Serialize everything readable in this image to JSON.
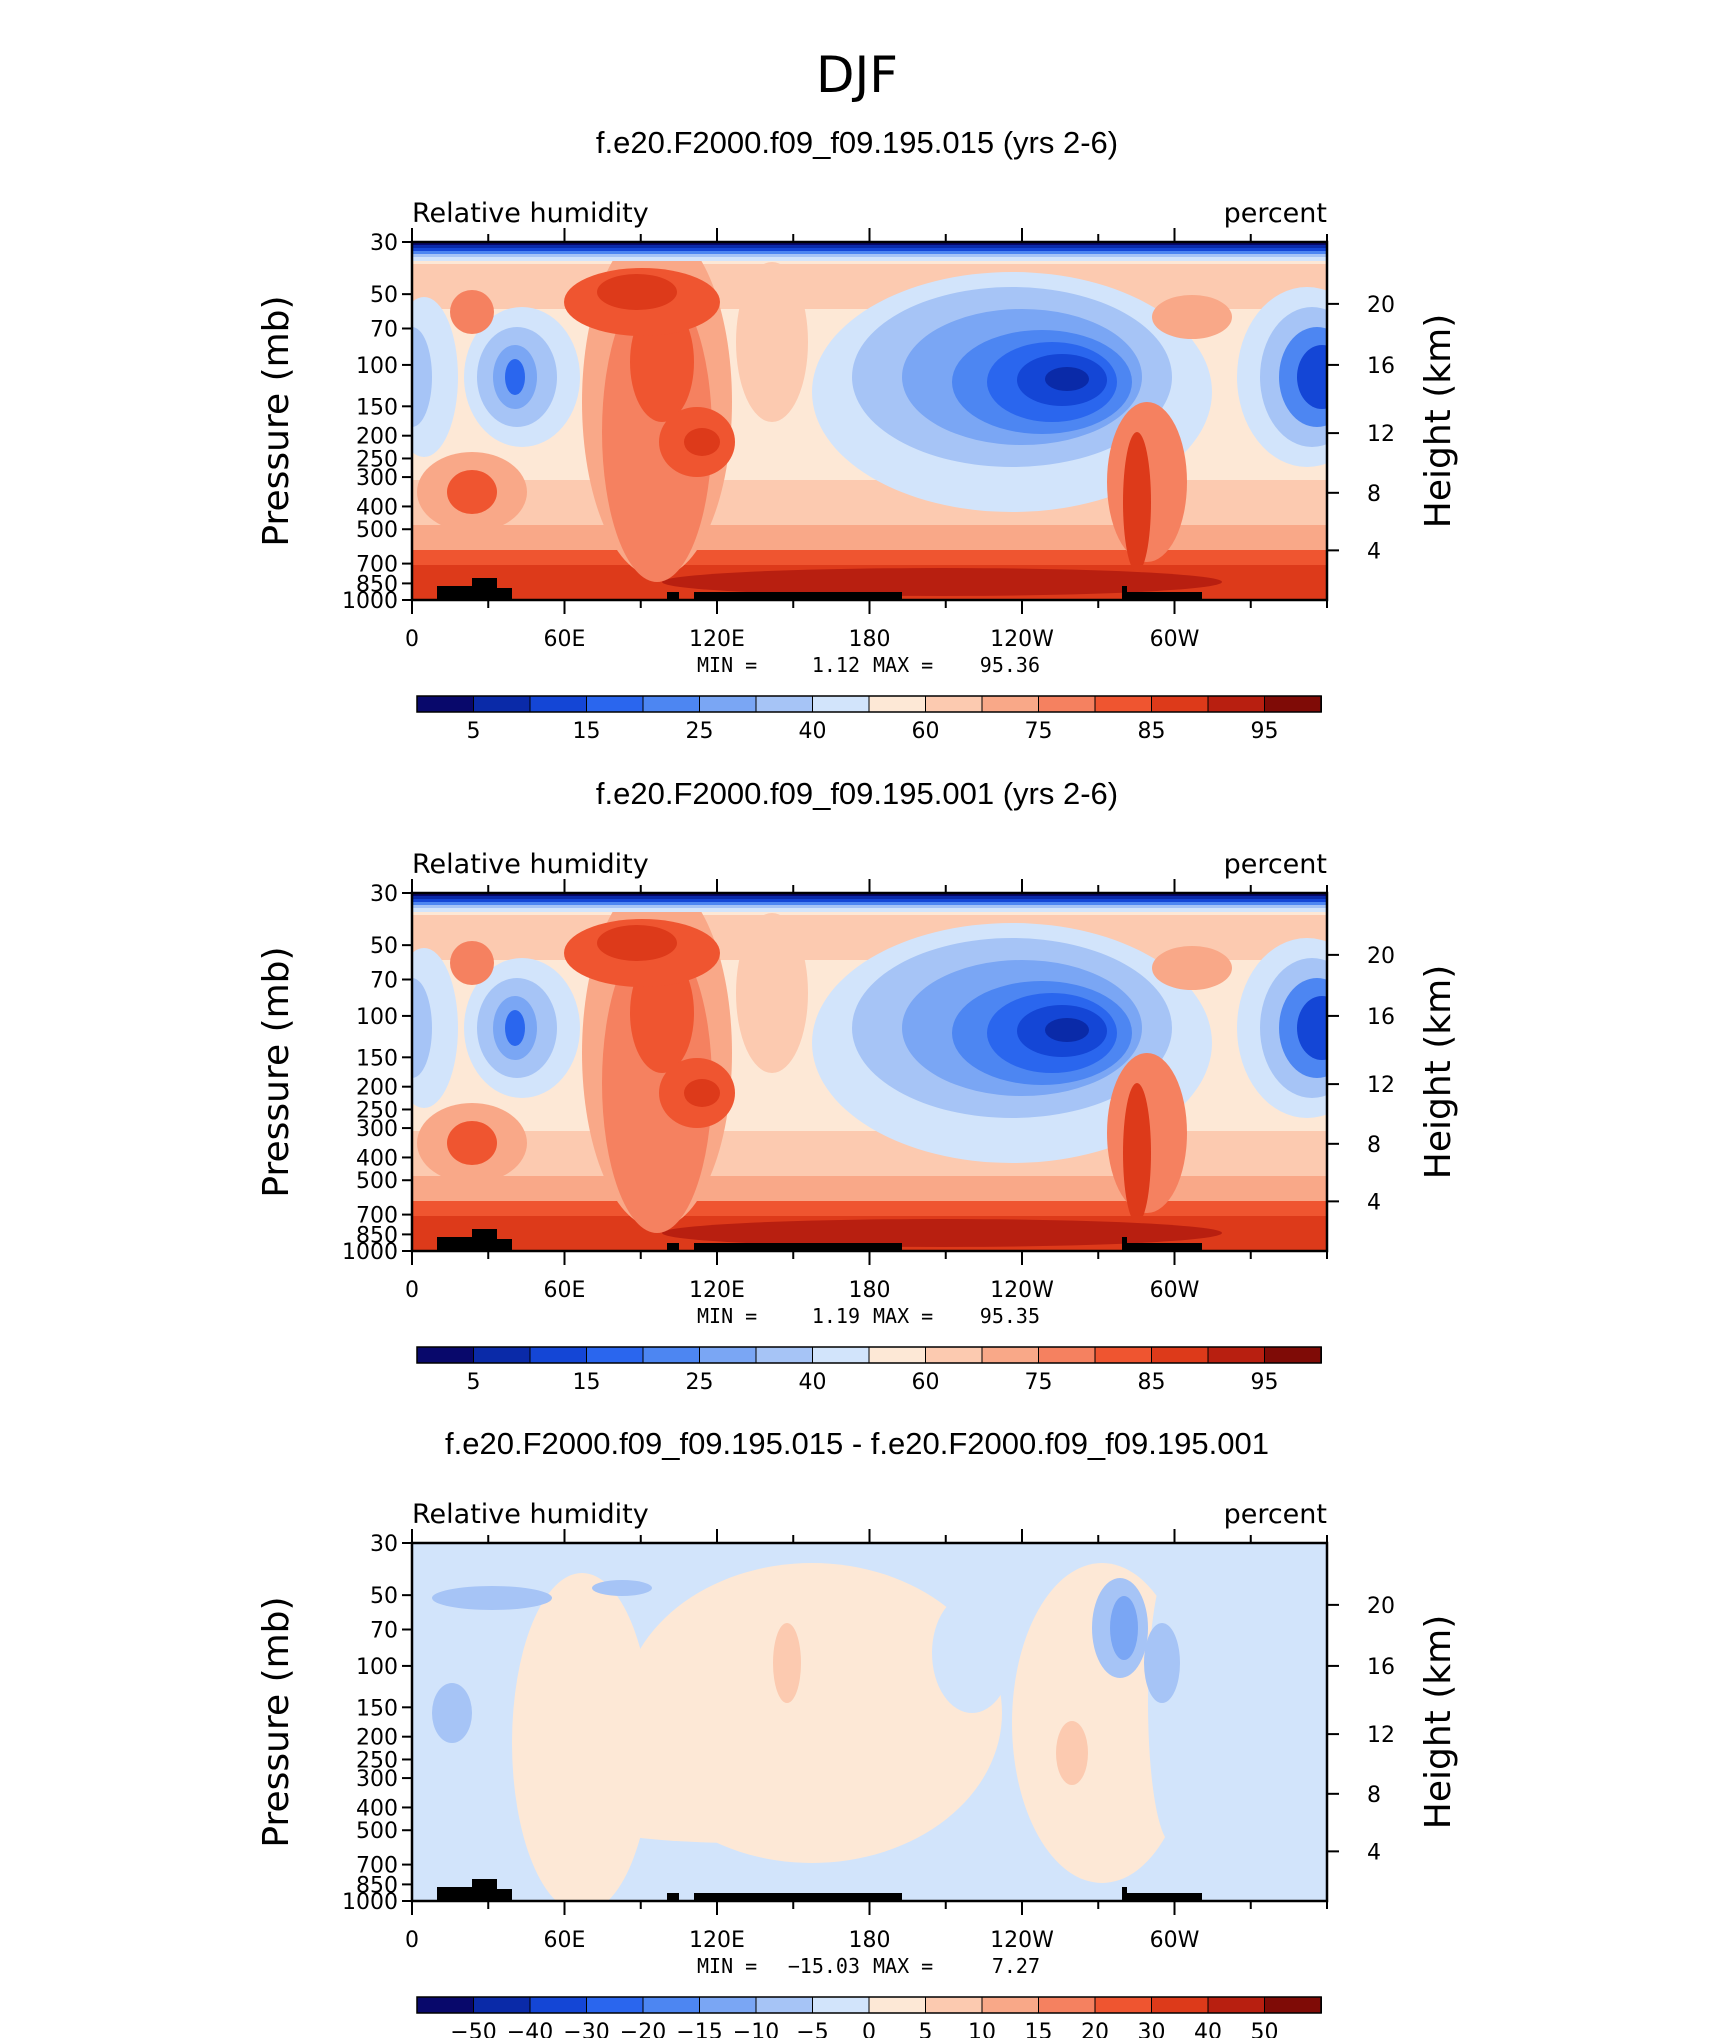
{
  "page": {
    "title": "DJF"
  },
  "colors": {
    "rh_levels": [
      "#08086b",
      "#0a2aa8",
      "#1446d6",
      "#2a66ee",
      "#4d86f2",
      "#7aa6f4",
      "#a6c4f6",
      "#d2e4fb",
      "#fde8d6",
      "#fccab0",
      "#f9a888",
      "#f58160",
      "#ef5530",
      "#dd3a1a",
      "#b81f10",
      "#7f0b06"
    ],
    "land": "#000000"
  },
  "chart_data": [
    {
      "type": "heatmap",
      "title": "f.e20.F2000.f09_f09.195.015 (yrs 2-6)",
      "left_label": "Relative humidity",
      "right_label": "percent",
      "ylabel": "Pressure (mb)",
      "y2label": "Height (km)",
      "x_ticks": [
        "0",
        "60E",
        "120E",
        "180",
        "120W",
        "60W"
      ],
      "y_ticks": [
        "30",
        "50",
        "70",
        "100",
        "150",
        "200",
        "250",
        "300",
        "400",
        "500",
        "700",
        "850",
        "1000"
      ],
      "y2_ticks": [
        "20",
        "16",
        "12",
        "8",
        "4"
      ],
      "xlim": [
        0,
        360
      ],
      "ylim": [
        1000,
        30
      ],
      "min_label": "MIN =",
      "min_value": "1.12",
      "max_label": "MAX =",
      "max_value": "95.36",
      "colorbar_labels": [
        "5",
        "15",
        "25",
        "40",
        "60",
        "75",
        "85",
        "95"
      ]
    },
    {
      "type": "heatmap",
      "title": "f.e20.F2000.f09_f09.195.001 (yrs 2-6)",
      "left_label": "Relative humidity",
      "right_label": "percent",
      "ylabel": "Pressure (mb)",
      "y2label": "Height (km)",
      "x_ticks": [
        "0",
        "60E",
        "120E",
        "180",
        "120W",
        "60W"
      ],
      "y_ticks": [
        "30",
        "50",
        "70",
        "100",
        "150",
        "200",
        "250",
        "300",
        "400",
        "500",
        "700",
        "850",
        "1000"
      ],
      "y2_ticks": [
        "20",
        "16",
        "12",
        "8",
        "4"
      ],
      "xlim": [
        0,
        360
      ],
      "ylim": [
        1000,
        30
      ],
      "min_label": "MIN =",
      "min_value": "1.19",
      "max_label": "MAX =",
      "max_value": "95.35",
      "colorbar_labels": [
        "5",
        "15",
        "25",
        "40",
        "60",
        "75",
        "85",
        "95"
      ]
    },
    {
      "type": "heatmap",
      "title": "f.e20.F2000.f09_f09.195.015 - f.e20.F2000.f09_f09.195.001",
      "left_label": "Relative humidity",
      "right_label": "percent",
      "ylabel": "Pressure (mb)",
      "y2label": "Height (km)",
      "x_ticks": [
        "0",
        "60E",
        "120E",
        "180",
        "120W",
        "60W"
      ],
      "y_ticks": [
        "30",
        "50",
        "70",
        "100",
        "150",
        "200",
        "250",
        "300",
        "400",
        "500",
        "700",
        "850",
        "1000"
      ],
      "y2_ticks": [
        "20",
        "16",
        "12",
        "8",
        "4"
      ],
      "xlim": [
        0,
        360
      ],
      "ylim": [
        1000,
        30
      ],
      "min_label": "MIN =",
      "min_value": "−15.03",
      "max_label": "MAX =",
      "max_value": "7.27",
      "colorbar_labels": [
        "−50",
        "−40",
        "−30",
        "−20",
        "−15",
        "−10",
        "−5",
        "0",
        "5",
        "10",
        "15",
        "20",
        "30",
        "40",
        "50"
      ]
    }
  ]
}
